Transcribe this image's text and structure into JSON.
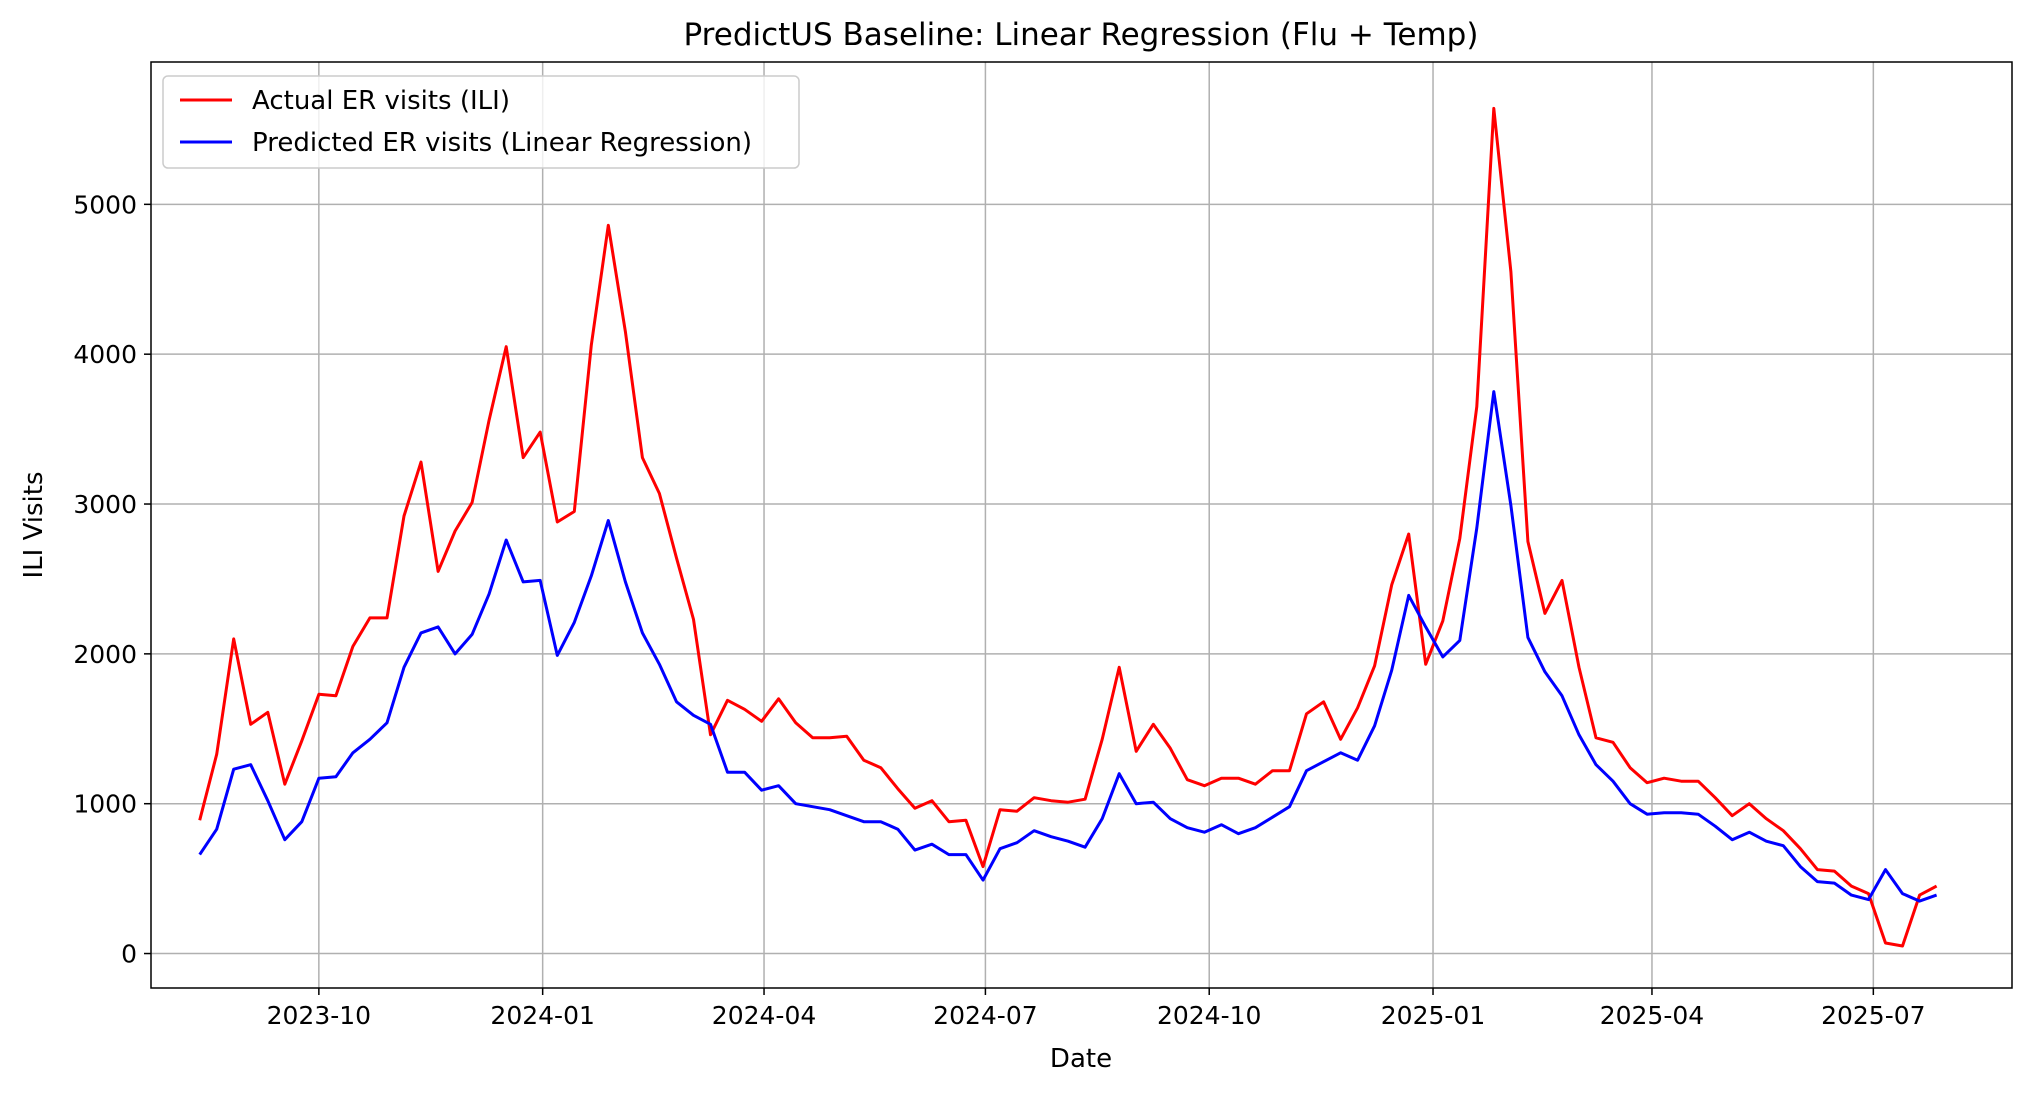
{
  "chart_data": {
    "type": "line",
    "title": "PredictUS Baseline: Linear Regression (Flu + Temp)",
    "xlabel": "Date",
    "ylabel": "ILI Visits",
    "xlim": [
      "2023-07-24",
      "2025-08-27"
    ],
    "ylim": [
      -230,
      5950
    ],
    "x_ticks": [
      "2023-10",
      "2024-01",
      "2024-04",
      "2024-07",
      "2024-10",
      "2025-01",
      "2025-04",
      "2025-07"
    ],
    "y_ticks": [
      0,
      1000,
      2000,
      3000,
      4000,
      5000
    ],
    "grid": true,
    "legend_position": "top-left",
    "x_start": "2023-08-13",
    "x_step_days": 7,
    "series": [
      {
        "name": "Actual ER visits (ILI)",
        "color": "#ff0000",
        "values": [
          890,
          1330,
          2100,
          1530,
          1610,
          1130,
          1420,
          1730,
          1720,
          2050,
          2240,
          2240,
          2920,
          3280,
          2550,
          2820,
          3010,
          3560,
          4050,
          3310,
          3480,
          2880,
          2950,
          4060,
          4860,
          4150,
          3310,
          3070,
          2640,
          2230,
          1460,
          1690,
          1630,
          1550,
          1700,
          1540,
          1440,
          1440,
          1450,
          1290,
          1240,
          1100,
          970,
          1020,
          880,
          890,
          580,
          960,
          950,
          1040,
          1020,
          1010,
          1030,
          1430,
          1910,
          1350,
          1530,
          1370,
          1160,
          1120,
          1170,
          1170,
          1130,
          1220,
          1220,
          1600,
          1680,
          1430,
          1640,
          1920,
          2460,
          2800,
          1930,
          2220,
          2770,
          3650,
          5640,
          4550,
          2750,
          2270,
          2490,
          1910,
          1440,
          1410,
          1240,
          1140,
          1170,
          1150,
          1150,
          1040,
          920,
          1000,
          900,
          820,
          700,
          560,
          550,
          450,
          400,
          70,
          50,
          390,
          450
        ]
      },
      {
        "name": "Predicted ER visits (Linear Regression)",
        "color": "#0000ff",
        "values": [
          660,
          830,
          1230,
          1260,
          1020,
          760,
          880,
          1170,
          1180,
          1340,
          1430,
          1540,
          1910,
          2140,
          2180,
          2000,
          2130,
          2400,
          2760,
          2480,
          2490,
          1990,
          2210,
          2520,
          2890,
          2480,
          2140,
          1930,
          1680,
          1590,
          1530,
          1210,
          1210,
          1090,
          1120,
          1000,
          980,
          960,
          920,
          880,
          880,
          830,
          690,
          730,
          660,
          660,
          490,
          700,
          740,
          820,
          780,
          750,
          710,
          900,
          1200,
          1000,
          1010,
          900,
          840,
          810,
          860,
          800,
          840,
          910,
          980,
          1220,
          1280,
          1340,
          1290,
          1520,
          1890,
          2390,
          2180,
          1980,
          2090,
          2840,
          3750,
          2990,
          2110,
          1880,
          1720,
          1460,
          1260,
          1150,
          1000,
          930,
          940,
          940,
          930,
          850,
          760,
          810,
          750,
          720,
          580,
          480,
          470,
          390,
          360,
          560,
          400,
          350,
          390
        ]
      }
    ]
  }
}
